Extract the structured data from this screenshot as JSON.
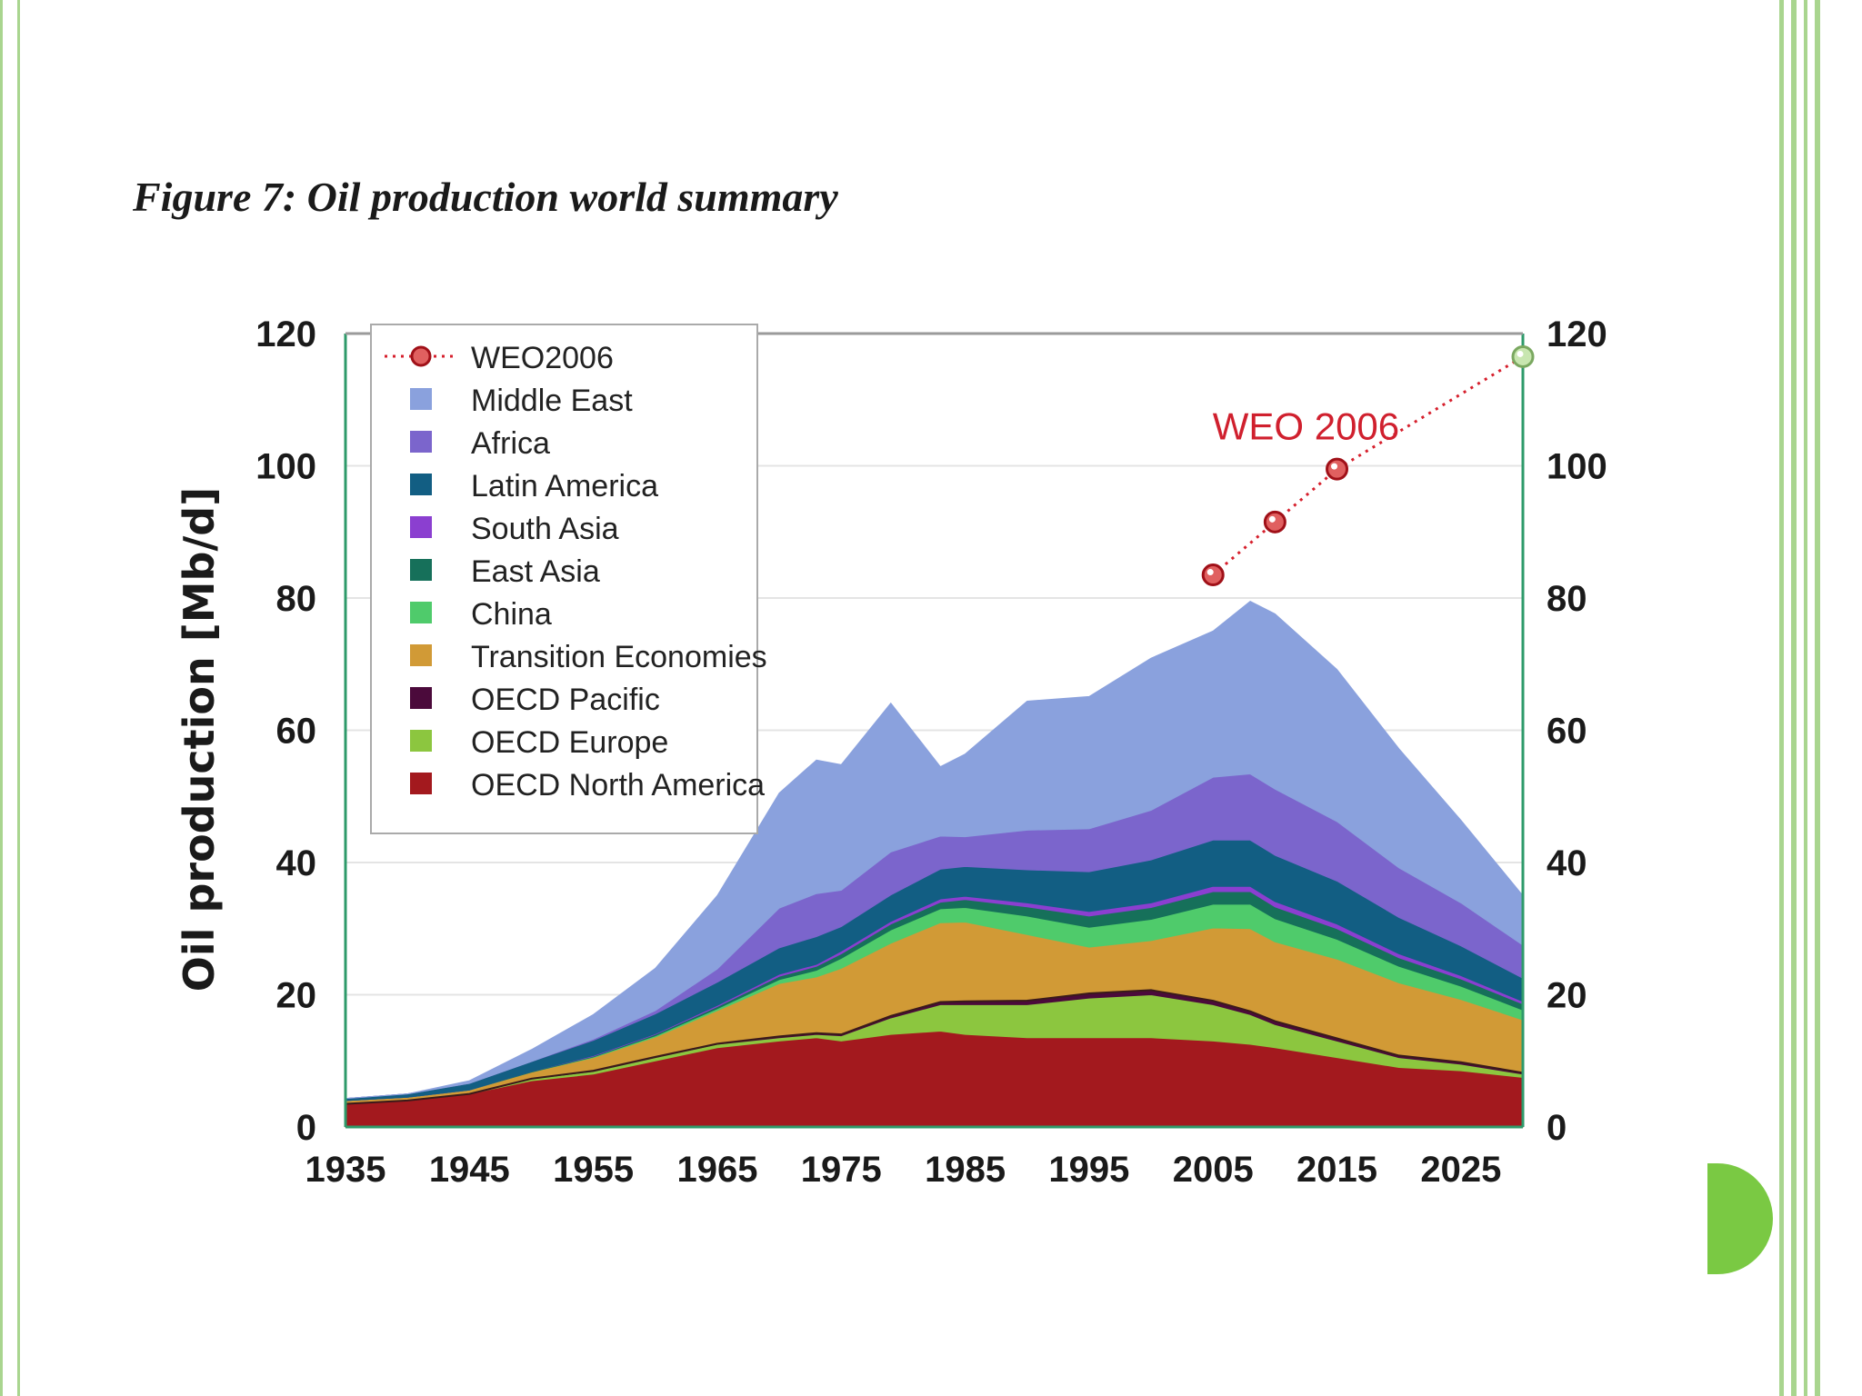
{
  "figure_title": "Figure 7: Oil production world summary",
  "colors": {
    "border_green": "#a9d58f",
    "accent_green": "#7ac943"
  },
  "chart_data": {
    "type": "area",
    "stacked": true,
    "title": "Figure 7: Oil production world summary",
    "xlabel": "",
    "ylabel": "Oil production [Mb/d]",
    "xlim": [
      1935,
      2030
    ],
    "ylim": [
      0,
      120
    ],
    "x_ticks": [
      1935,
      1945,
      1955,
      1965,
      1975,
      1985,
      1995,
      2005,
      2015,
      2025
    ],
    "y_ticks": [
      0,
      20,
      40,
      60,
      80,
      100,
      120
    ],
    "legend_position": "top-left",
    "x": [
      1935,
      1940,
      1945,
      1950,
      1955,
      1960,
      1965,
      1970,
      1973,
      1975,
      1979,
      1983,
      1985,
      1990,
      1995,
      2000,
      2005,
      2008,
      2010,
      2015,
      2020,
      2025,
      2030
    ],
    "series": [
      {
        "name": "OECD North America",
        "color": "#a3191e",
        "values": [
          3.5,
          4,
          5,
          7,
          8,
          10,
          12,
          13,
          13.5,
          13,
          14,
          14.5,
          14,
          13.5,
          13.5,
          13.5,
          13,
          12.5,
          12,
          10.5,
          9,
          8.5,
          7.5
        ]
      },
      {
        "name": "OECD Europe",
        "color": "#8cc63f",
        "values": [
          0,
          0,
          0,
          0.3,
          0.4,
          0.5,
          0.5,
          0.5,
          0.5,
          0.8,
          2.5,
          4,
          4.5,
          5,
          6,
          6.5,
          5.5,
          4.5,
          3.5,
          2.5,
          1.5,
          1,
          0.5
        ]
      },
      {
        "name": "OECD Pacific",
        "color": "#4b0a3b",
        "values": [
          0,
          0,
          0,
          0,
          0.1,
          0.1,
          0.1,
          0.2,
          0.2,
          0.2,
          0.3,
          0.4,
          0.5,
          0.6,
          0.7,
          0.7,
          0.6,
          0.5,
          0.5,
          0.4,
          0.3,
          0.3,
          0.2
        ]
      },
      {
        "name": "Transition Economies",
        "color": "#d19a36",
        "values": [
          0.5,
          0.5,
          0.6,
          1,
          2,
          3,
          5,
          8,
          8.5,
          10,
          11,
          12,
          12,
          10,
          7,
          7.5,
          11,
          12.5,
          12,
          12,
          11,
          9.5,
          8
        ]
      },
      {
        "name": "China",
        "color": "#4fcb6b",
        "values": [
          0,
          0,
          0,
          0,
          0.1,
          0.2,
          0.3,
          0.6,
          1,
          1.5,
          2,
          2.1,
          2.2,
          2.8,
          3,
          3.2,
          3.6,
          3.7,
          3.5,
          3,
          2.5,
          2,
          1.5
        ]
      },
      {
        "name": "East Asia",
        "color": "#16705a",
        "values": [
          0,
          0,
          0,
          0.1,
          0.1,
          0.2,
          0.3,
          0.5,
          0.6,
          0.7,
          0.9,
          1,
          1.2,
          1.4,
          1.7,
          1.8,
          1.9,
          1.9,
          1.8,
          1.6,
          1.3,
          1.1,
          0.9
        ]
      },
      {
        "name": "South Asia",
        "color": "#8b3fd0",
        "values": [
          0,
          0,
          0,
          0,
          0.1,
          0.1,
          0.2,
          0.3,
          0.3,
          0.4,
          0.4,
          0.5,
          0.5,
          0.6,
          0.7,
          0.7,
          0.8,
          0.8,
          0.8,
          0.7,
          0.6,
          0.5,
          0.4
        ]
      },
      {
        "name": "Latin America",
        "color": "#125e83",
        "values": [
          0.3,
          0.5,
          1,
          1.5,
          2.3,
          3,
          3.5,
          4,
          4.2,
          3.7,
          4,
          4.5,
          4.5,
          5,
          6,
          6.5,
          7,
          7,
          7,
          6.5,
          5.5,
          4.5,
          3.5
        ]
      },
      {
        "name": "Africa",
        "color": "#7b65cc",
        "values": [
          0,
          0,
          0,
          0,
          0.2,
          0.5,
          2,
          6,
          6.5,
          5.5,
          6.5,
          5,
          4.5,
          6,
          6.5,
          7.5,
          9.5,
          10,
          10,
          9,
          7.5,
          6.5,
          5
        ]
      },
      {
        "name": "Middle East",
        "color": "#8aa1dd",
        "values": [
          0,
          0,
          0.4,
          1.8,
          3.7,
          6.4,
          11.1,
          17.4,
          20.2,
          19,
          22.5,
          10.5,
          12.5,
          19.5,
          20,
          23,
          22.1,
          26.1,
          26.5,
          23,
          18,
          12.5,
          7.5
        ]
      }
    ],
    "weo_series": {
      "name": "WEO2006",
      "color": "#d61f2c",
      "x": [
        2005,
        2010,
        2015,
        2030
      ],
      "values": [
        83.5,
        91.5,
        99.5,
        116.5
      ]
    },
    "annotation": {
      "text": "WEO 2006",
      "color": "#d0202e"
    }
  }
}
